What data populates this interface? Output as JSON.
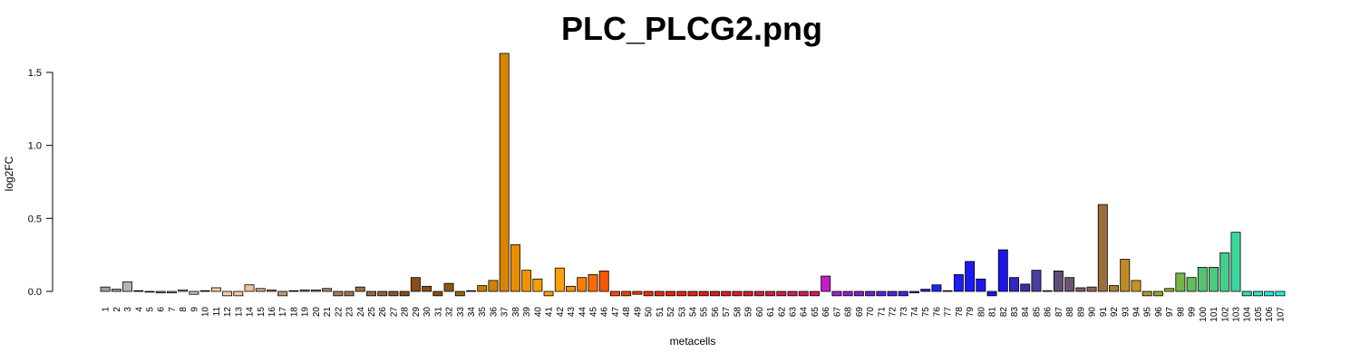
{
  "chart_data": {
    "type": "bar",
    "title": "PLC_PLCG2.png",
    "xlabel": "metacells",
    "ylabel": "log2FC",
    "ylim": [
      -0.03,
      1.64
    ],
    "yticks": [
      0.0,
      0.5,
      1.0,
      1.5
    ],
    "ytick_labels": [
      "0.0",
      "0.5",
      "1.0",
      "1.5"
    ],
    "grid": false,
    "legend": "none",
    "categories": [
      "1",
      "2",
      "3",
      "4",
      "5",
      "6",
      "7",
      "8",
      "9",
      "10",
      "11",
      "12",
      "13",
      "14",
      "15",
      "16",
      "17",
      "18",
      "19",
      "20",
      "21",
      "22",
      "23",
      "24",
      "25",
      "26",
      "27",
      "28",
      "29",
      "30",
      "31",
      "32",
      "33",
      "34",
      "35",
      "36",
      "37",
      "38",
      "39",
      "40",
      "41",
      "42",
      "43",
      "44",
      "45",
      "46",
      "47",
      "48",
      "49",
      "50",
      "51",
      "52",
      "53",
      "54",
      "55",
      "56",
      "57",
      "58",
      "59",
      "60",
      "61",
      "62",
      "63",
      "64",
      "65",
      "66",
      "67",
      "68",
      "69",
      "70",
      "71",
      "72",
      "73",
      "74",
      "75",
      "76",
      "77",
      "78",
      "79",
      "80",
      "81",
      "82",
      "83",
      "84",
      "85",
      "86",
      "87",
      "88",
      "89",
      "90",
      "91",
      "92",
      "93",
      "94",
      "95",
      "96",
      "97",
      "98",
      "99",
      "100",
      "101",
      "102",
      "103",
      "104",
      "105",
      "106",
      "107"
    ],
    "values": [
      0.03,
      0.015,
      0.065,
      0.005,
      -0.005,
      -0.01,
      -0.01,
      0.01,
      -0.02,
      0.005,
      0.025,
      -0.03,
      -0.03,
      0.045,
      0.02,
      0.01,
      -0.03,
      0.005,
      0.01,
      0.01,
      0.02,
      -0.03,
      -0.03,
      0.03,
      -0.03,
      -0.03,
      -0.03,
      -0.03,
      0.095,
      0.035,
      -0.03,
      0.055,
      -0.03,
      0.005,
      0.04,
      0.075,
      1.63,
      0.32,
      0.145,
      0.085,
      -0.03,
      0.16,
      0.035,
      0.095,
      0.115,
      0.14,
      -0.03,
      -0.03,
      -0.02,
      -0.03,
      -0.03,
      -0.03,
      -0.03,
      -0.03,
      -0.03,
      -0.03,
      -0.03,
      -0.03,
      -0.03,
      -0.03,
      -0.03,
      -0.03,
      -0.03,
      -0.03,
      -0.03,
      0.105,
      -0.03,
      -0.03,
      -0.03,
      -0.03,
      -0.03,
      -0.03,
      -0.03,
      -0.01,
      0.015,
      0.045,
      0.005,
      0.115,
      0.205,
      0.085,
      -0.03,
      0.285,
      0.095,
      0.05,
      0.145,
      0.005,
      0.14,
      0.095,
      0.025,
      0.03,
      0.595,
      0.04,
      0.22,
      0.075,
      -0.03,
      -0.03,
      0.02,
      0.125,
      0.095,
      0.165,
      0.165,
      0.265,
      0.405,
      -0.03,
      -0.03,
      -0.03,
      -0.03
    ],
    "colors": [
      "#a99d96",
      "#aaa29c",
      "#bab3ae",
      "#9e9a97",
      "#999694",
      "#a8a29d",
      "#b4a89e",
      "#c4b39f",
      "#d8c0a4",
      "#e8c9a7",
      "#f2c99f",
      "#f8caa0",
      "#f4c69a",
      "#efc397",
      "#d2ab82",
      "#c29f7d",
      "#bd9a77",
      "#b99773",
      "#b6936f",
      "#b18d68",
      "#ad8762",
      "#a47c55",
      "#9f754d",
      "#9a6f46",
      "#956b44",
      "#8f6236",
      "#8a5a2a",
      "#884f1b",
      "#8a4f15",
      "#8c4f12",
      "#8f5014",
      "#8e5616",
      "#9d6519",
      "#b86e11",
      "#c67c06",
      "#cd8302",
      "#d98400",
      "#e68d00",
      "#ef9400",
      "#f59c00",
      "#fa9e00",
      "#fca10a",
      "#fb8f00",
      "#fb7d00",
      "#fb6a00",
      "#f85800",
      "#f44b00",
      "#f14100",
      "#ee3a00",
      "#ec3400",
      "#ea2c00",
      "#e92605",
      "#e8230b",
      "#e62012",
      "#e41d19",
      "#e21d20",
      "#e01d26",
      "#de1d2c",
      "#dc1d32",
      "#da1d3a",
      "#d81d42",
      "#d61d4a",
      "#d41d52",
      "#d21d5c",
      "#cd1d66",
      "#c31ec5",
      "#a01fd0",
      "#8f20cf",
      "#7f21d0",
      "#6f22d4",
      "#5f23d8",
      "#5024dc",
      "#4125e0",
      "#3226e4",
      "#2427e8",
      "#1828ec",
      "#1a22f2",
      "#1b1cf4",
      "#1d1af1",
      "#1e18ee",
      "#1e16eb",
      "#1c14e6",
      "#2f28c4",
      "#3c30b0",
      "#4a3e9c",
      "#574c88",
      "#5e4f7a",
      "#6b5570",
      "#7b5e66",
      "#8c6759",
      "#9c6c3e",
      "#b07a2a",
      "#bf8a26",
      "#c4951f",
      "#a79a28",
      "#9ea028",
      "#8fb238",
      "#74b648",
      "#64bc5a",
      "#55c26c",
      "#4cc97d",
      "#44cf8d",
      "#3cd69c",
      "#34dcae",
      "#2ee4c2",
      "#28ead6",
      "#22eee6"
    ]
  }
}
